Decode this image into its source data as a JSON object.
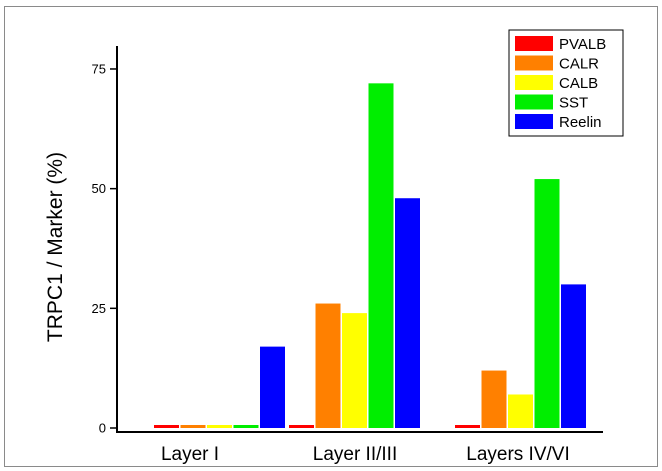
{
  "chart_data": {
    "type": "bar",
    "categories": [
      "Layer I",
      "Layer II/III",
      "Layers IV/VI"
    ],
    "series": [
      {
        "name": "PVALB",
        "color": "#ff0000",
        "values": [
          0,
          0,
          0
        ]
      },
      {
        "name": "CALR",
        "color": "#ff8000",
        "values": [
          0,
          26,
          12
        ]
      },
      {
        "name": "CALB",
        "color": "#ffff00",
        "values": [
          0,
          24,
          7
        ]
      },
      {
        "name": "SST",
        "color": "#00ee00",
        "values": [
          0,
          72,
          52
        ]
      },
      {
        "name": "Reelin",
        "color": "#0000ff",
        "values": [
          17,
          48,
          30
        ]
      }
    ],
    "ylabel": "TRPC1 / Marker (%)",
    "xlabel": "",
    "ylim": [
      0,
      80
    ],
    "yticks": [
      0,
      25,
      50,
      75
    ],
    "grid": false,
    "legend_position": "top-right"
  }
}
